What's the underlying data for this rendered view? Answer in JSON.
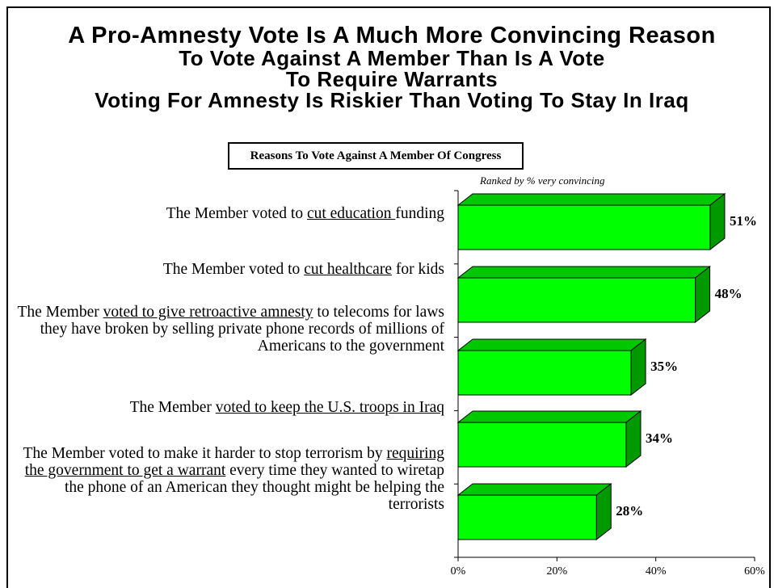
{
  "title": {
    "line1": "A Pro-Amnesty Vote Is A Much More Convincing Reason",
    "line2": "To Vote Against A Member Than Is A Vote",
    "line3": "To Require Warrants",
    "line4": "Voting For Amnesty Is Riskier Than Voting To Stay In Iraq"
  },
  "chart_box_title": "Reasons To Vote Against A Member Of Congress",
  "note": "Ranked by % very convincing",
  "colors": {
    "bar_front": "#00ff00",
    "bar_top": "#00c800",
    "bar_side": "#009900",
    "outline": "#000000"
  },
  "chart_data": {
    "type": "bar",
    "orientation": "horizontal",
    "style": "3d",
    "categories": [
      [
        {
          "t": "The Member voted to "
        },
        {
          "t": "cut education ",
          "u": true
        },
        {
          "t": "funding"
        }
      ],
      [
        {
          "t": "The Member voted to "
        },
        {
          "t": "cut healthcare",
          "u": true
        },
        {
          "t": " for kids"
        }
      ],
      [
        {
          "t": "The Member "
        },
        {
          "t": "voted to give retroactive amnesty",
          "u": true
        },
        {
          "t": " to telecoms for laws they have broken by selling private phone records of millions of Americans to the government"
        }
      ],
      [
        {
          "t": "The Member "
        },
        {
          "t": "voted to keep the U.S. troops in Iraq",
          "u": true
        }
      ],
      [
        {
          "t": "The Member voted to make it harder to stop terrorism by "
        },
        {
          "t": "requiring the government to get a warrant",
          "u": true
        },
        {
          "t": " every time they wanted to wiretap the phone of an American they thought might be helping the terrorists"
        }
      ]
    ],
    "values": [
      51,
      48,
      35,
      34,
      28
    ],
    "data_labels": [
      "51%",
      "48%",
      "35%",
      "34%",
      "28%"
    ],
    "xlim": [
      0,
      60
    ],
    "ticks": [
      "0%",
      "20%",
      "40%",
      "60%"
    ],
    "grid": false
  }
}
